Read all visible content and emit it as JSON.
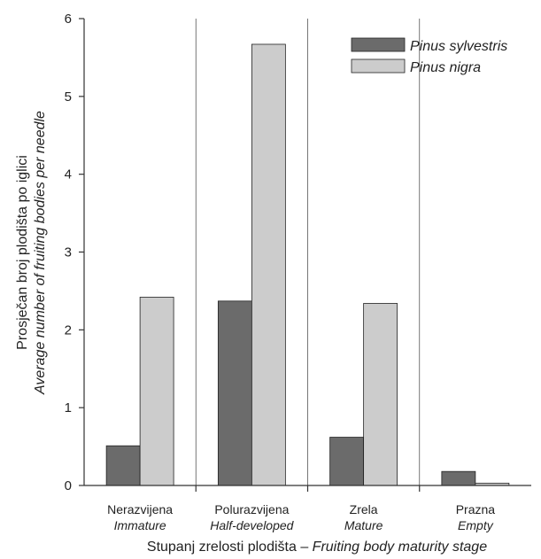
{
  "chart_data": {
    "type": "bar",
    "categories": [
      {
        "label": "Nerazvijena",
        "label_en": "Immature"
      },
      {
        "label": "Polurazvijena",
        "label_en": "Half-developed"
      },
      {
        "label": "Zrela",
        "label_en": "Mature"
      },
      {
        "label": "Prazna",
        "label_en": "Empty"
      }
    ],
    "series": [
      {
        "name": "Pinus sylvestris",
        "color": "#6b6b6b",
        "values": [
          0.51,
          2.37,
          0.62,
          0.18
        ]
      },
      {
        "name": "Pinus nigra",
        "color": "#cccccc",
        "values": [
          2.42,
          5.67,
          2.34,
          0.03
        ]
      }
    ],
    "ylim": [
      0,
      6
    ],
    "yticks": [
      "0",
      "1",
      "2",
      "3",
      "4",
      "5",
      "6"
    ],
    "ylabel": "Prosječan broj plodišta po iglici",
    "ylabel_en": "Average number of fruiting bodies per needle",
    "xlabel": "Stupanj zrelosti plodišta – ",
    "xlabel_en": "Fruiting body maturity stage",
    "legend_position": "top-right",
    "grid": "vertical separators between categories"
  }
}
